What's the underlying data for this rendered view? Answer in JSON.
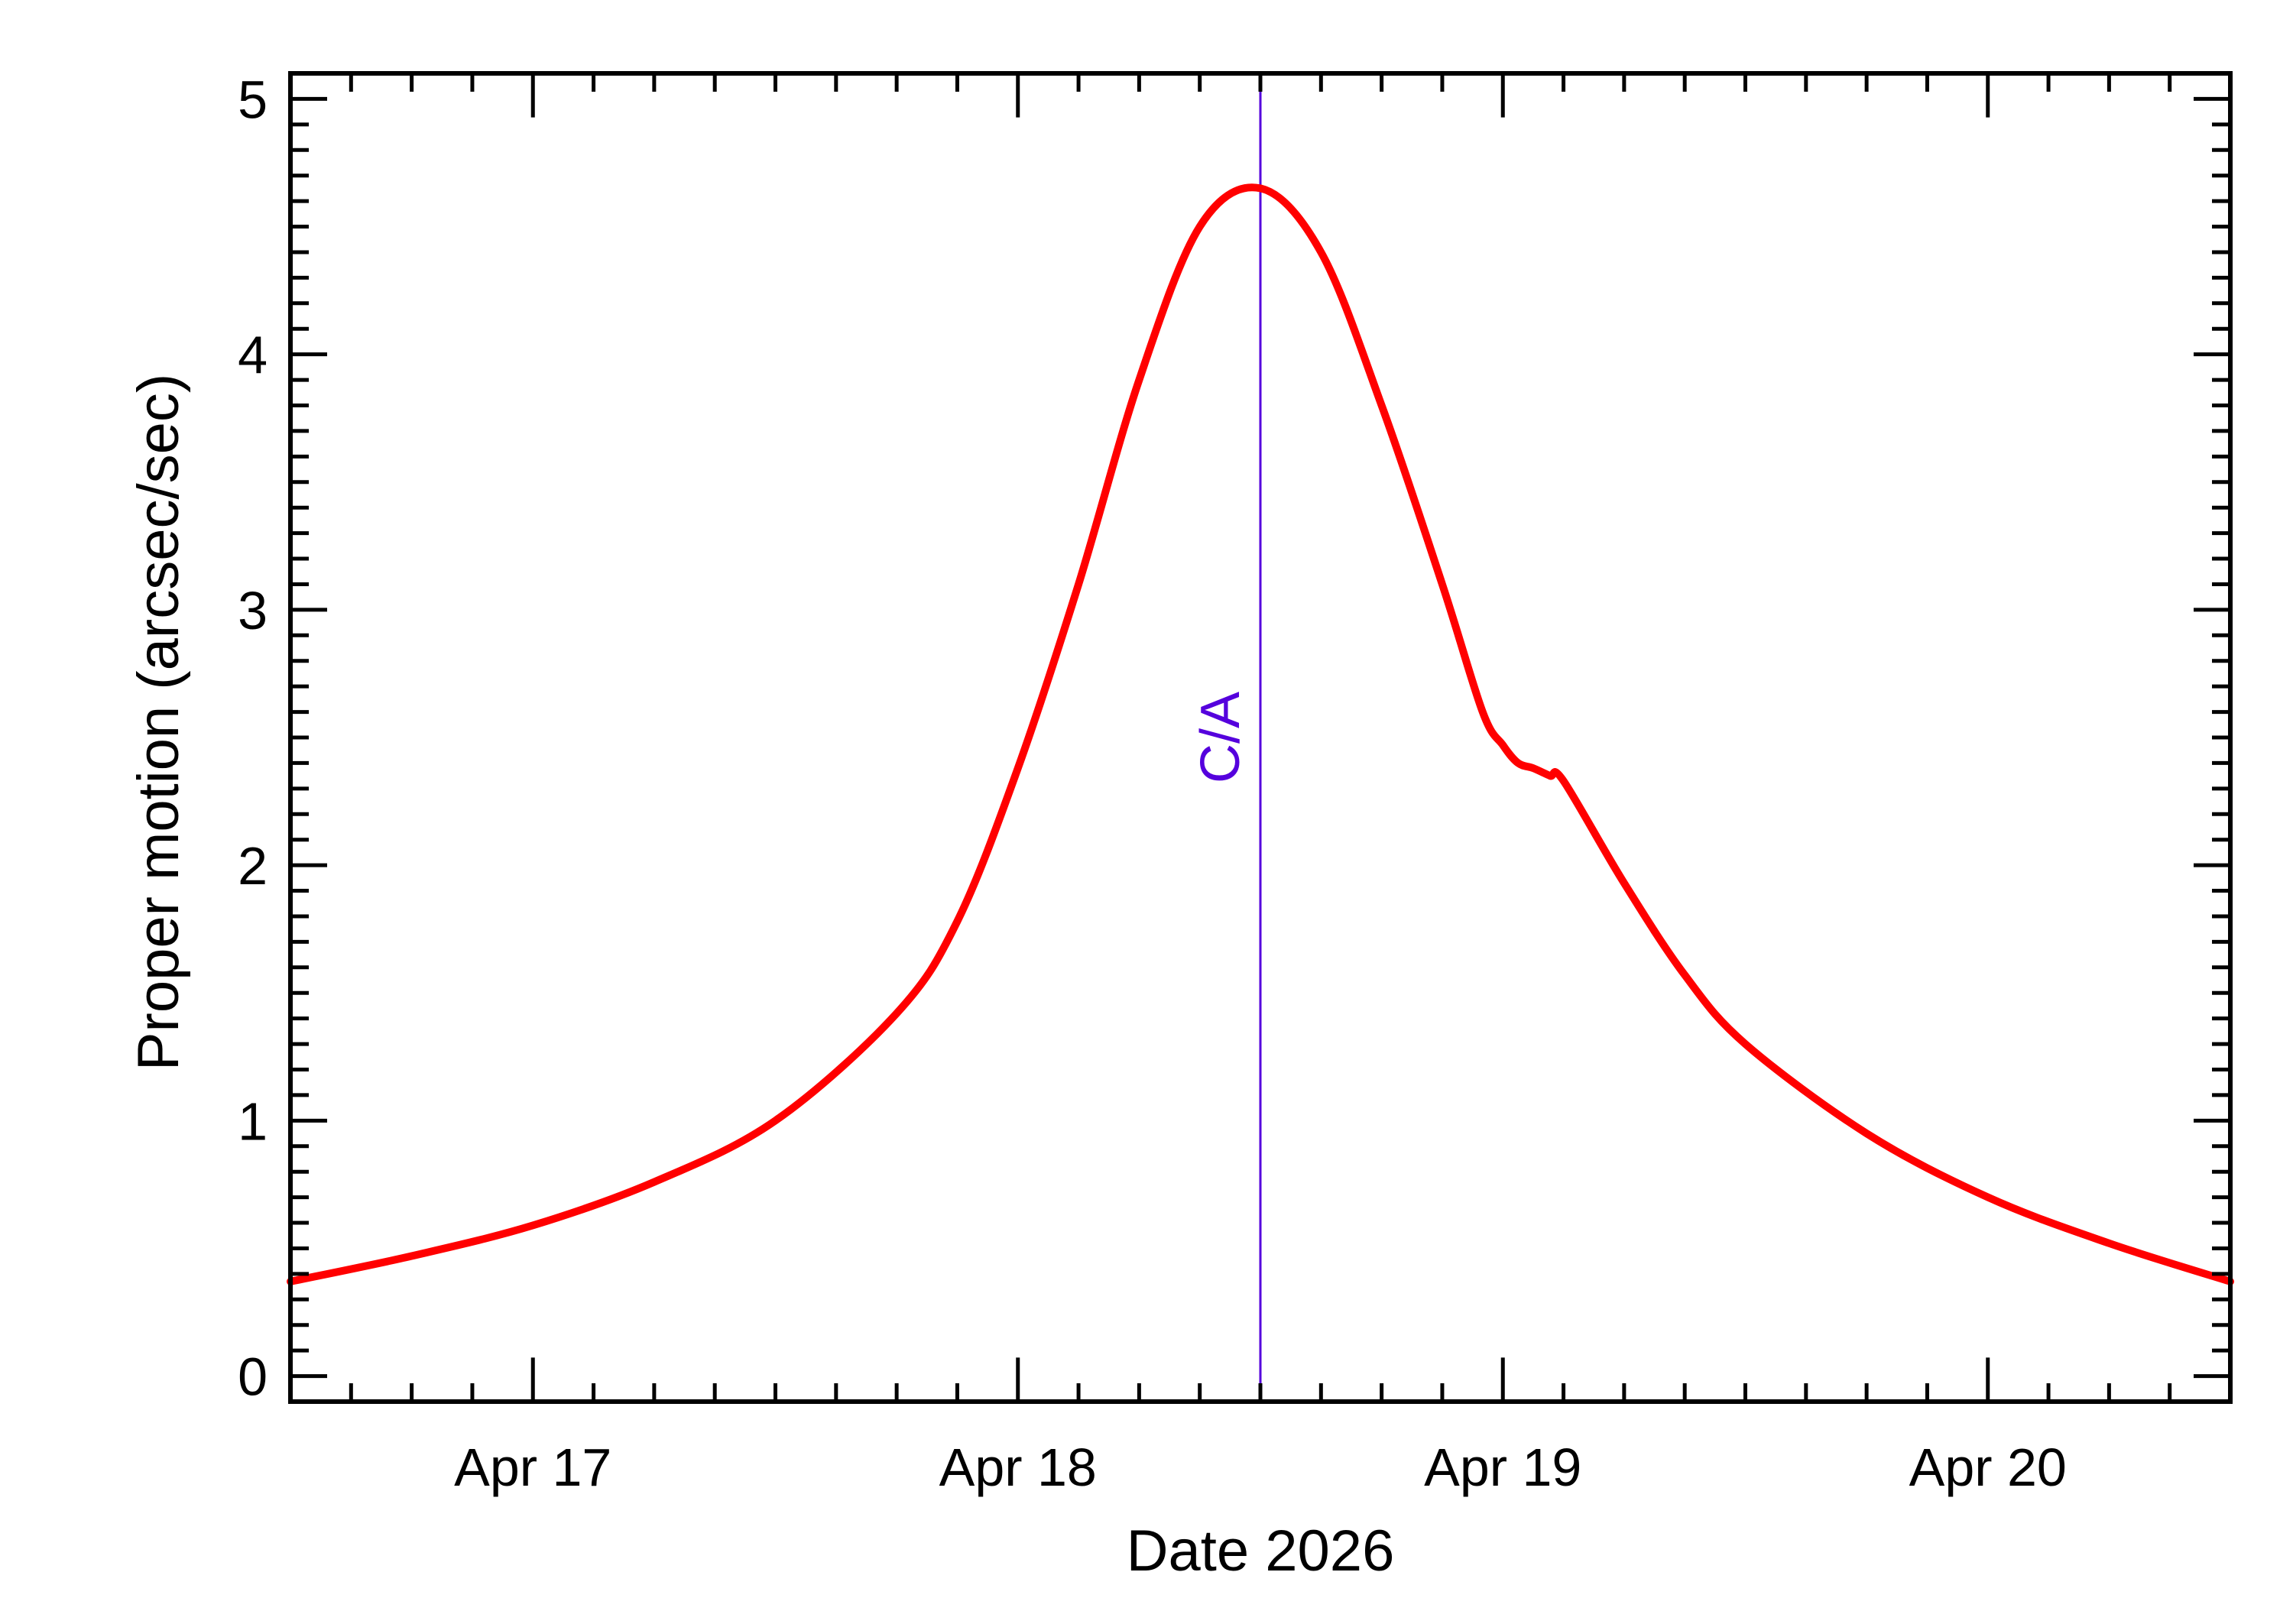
{
  "chart_data": {
    "type": "line",
    "title": "",
    "xlabel": "Date 2026",
    "ylabel": "Proper motion (arcsec/sec)",
    "x_unit": "days",
    "xlim": [
      "2026-04-16 12:00",
      "2026-04-20 12:00"
    ],
    "ylim": [
      -0.1,
      5.1
    ],
    "x_ticks": [
      {
        "value": "2026-04-17 00:00",
        "label": "Apr 17"
      },
      {
        "value": "2026-04-18 00:00",
        "label": "Apr 18"
      },
      {
        "value": "2026-04-19 00:00",
        "label": "Apr 19"
      },
      {
        "value": "2026-04-20 00:00",
        "label": "Apr 20"
      }
    ],
    "y_ticks": [
      0,
      1,
      2,
      3,
      4,
      5
    ],
    "y_minor_step": 0.1,
    "x_minor_step_hours": 3,
    "grid": false,
    "series": [
      {
        "color": "#ff0000",
        "x": [
          "2026-04-16 12:00",
          "2026-04-16 18:00",
          "2026-04-17 00:00",
          "2026-04-17 06:00",
          "2026-04-17 12:00",
          "2026-04-17 18:00",
          "2026-04-17 21:00",
          "2026-04-18 00:00",
          "2026-04-18 03:00",
          "2026-04-18 06:00",
          "2026-04-18 09:00",
          "2026-04-18 12:00",
          "2026-04-18 15:00",
          "2026-04-18 18:00",
          "2026-04-18 21:00",
          "2026-04-18 23:00",
          "2026-04-19 00:00",
          "2026-04-19 00:45",
          "2026-04-19 01:30",
          "2026-04-19 02:20",
          "2026-04-19 03:00",
          "2026-04-19 06:00",
          "2026-04-19 09:00",
          "2026-04-19 12:00",
          "2026-04-19 18:00",
          "2026-04-20 00:00",
          "2026-04-20 06:00",
          "2026-04-20 12:00"
        ],
        "y": [
          0.37,
          0.47,
          0.59,
          0.76,
          1.0,
          1.42,
          1.78,
          2.38,
          3.1,
          3.9,
          4.5,
          4.65,
          4.4,
          3.8,
          3.1,
          2.6,
          2.47,
          2.4,
          2.38,
          2.35,
          2.33,
          1.93,
          1.57,
          1.3,
          0.95,
          0.7,
          0.52,
          0.37
        ]
      }
    ],
    "annotations": [
      {
        "type": "vline",
        "x": "2026-04-18 12:00",
        "label": "C/A",
        "color": "#5500dd"
      }
    ]
  }
}
